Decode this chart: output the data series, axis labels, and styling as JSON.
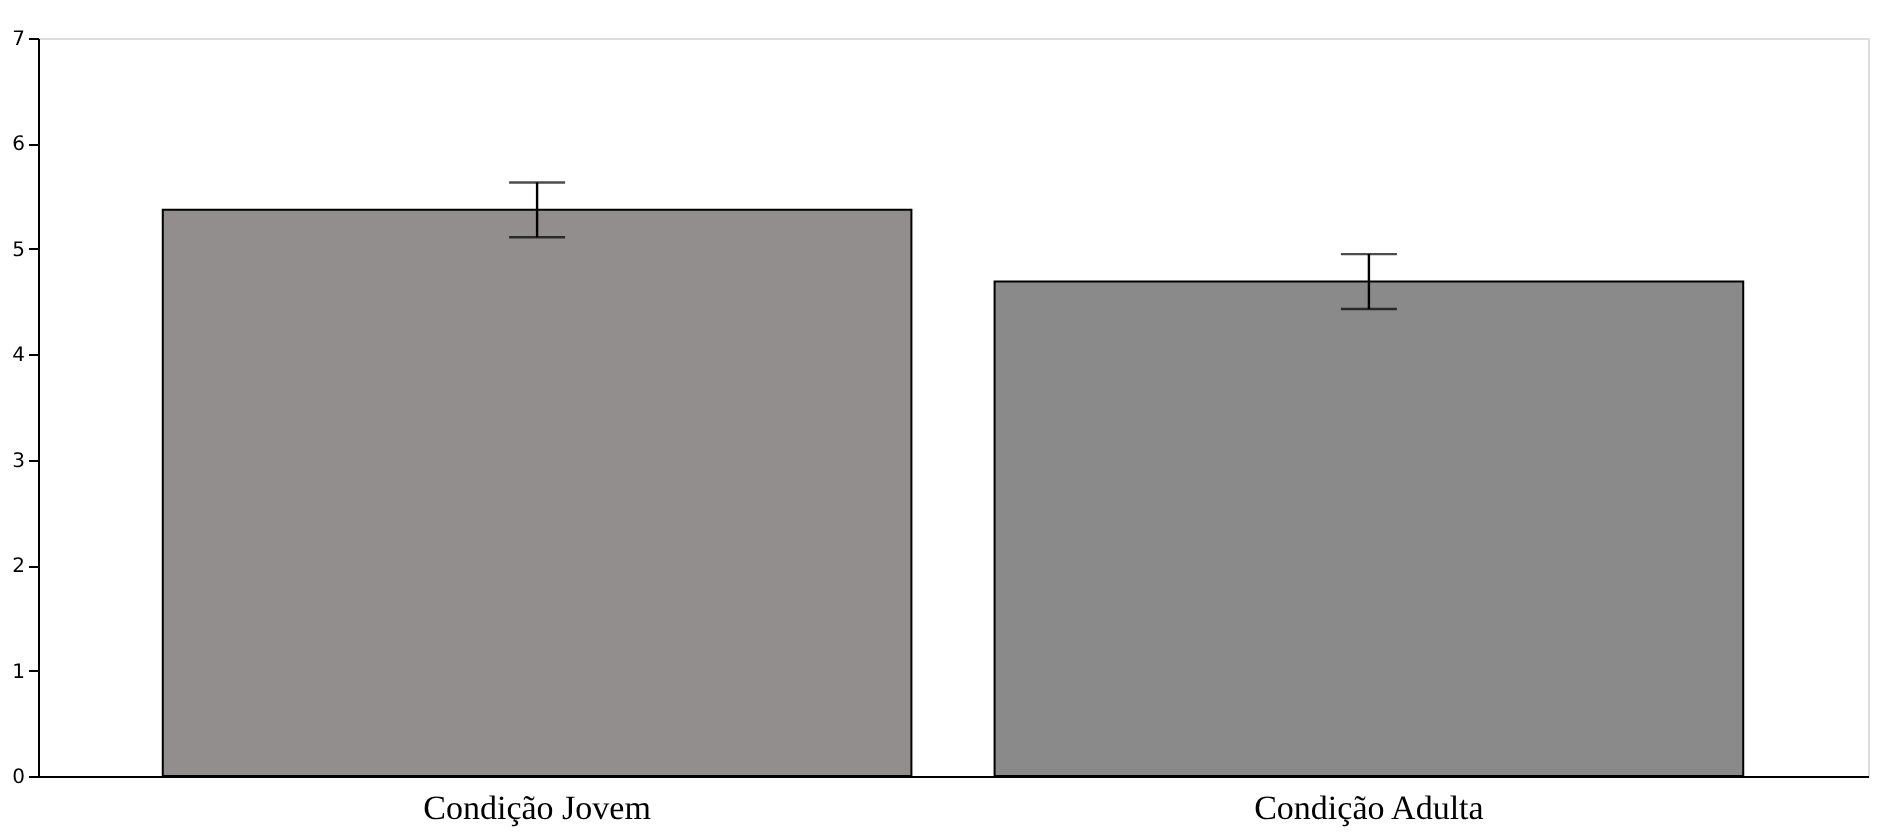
{
  "chart_data": {
    "type": "bar",
    "categories": [
      "Condição Jovem",
      "Condição Adulta"
    ],
    "values": [
      5.37,
      4.69
    ],
    "errors": [
      0.26,
      0.26
    ],
    "colors": [
      "#928e8e",
      "#8a8a8a"
    ],
    "ylim": [
      0,
      7
    ],
    "yticks": [
      0,
      1,
      2,
      3,
      4,
      5,
      6,
      7
    ],
    "grid": false
  }
}
